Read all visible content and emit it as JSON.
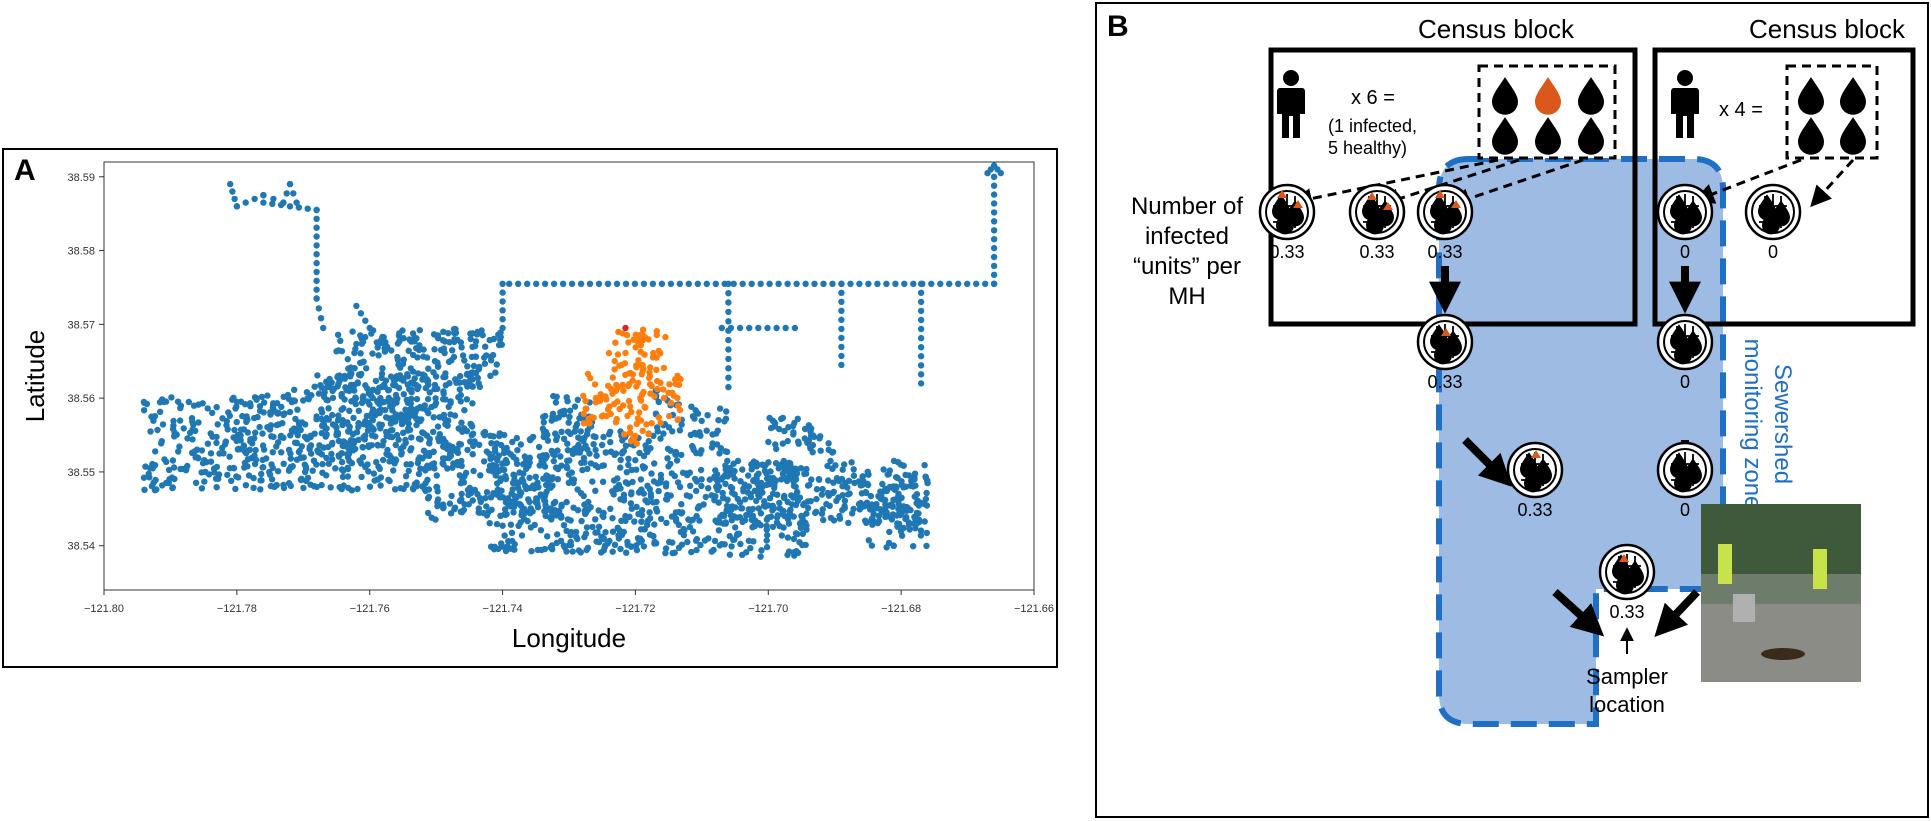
{
  "panel_a": {
    "letter": "A",
    "chart_data": {
      "type": "scatter",
      "xlabel": "Longitude",
      "ylabel": "Latitude",
      "xlim": [
        -121.8,
        -121.66
      ],
      "ylim": [
        38.534,
        38.592
      ],
      "xticks": [
        "−121.80",
        "−121.78",
        "−121.76",
        "−121.74",
        "−121.72",
        "−121.70",
        "−121.68",
        "−121.66"
      ],
      "xtick_values": [
        -121.8,
        -121.78,
        -121.76,
        -121.74,
        -121.72,
        -121.7,
        -121.68,
        -121.66
      ],
      "yticks": [
        "38.54",
        "38.55",
        "38.56",
        "38.57",
        "38.58",
        "38.59"
      ],
      "ytick_values": [
        38.54,
        38.55,
        38.56,
        38.57,
        38.58,
        38.59
      ],
      "grid": false,
      "series": [
        {
          "color": "#1f77b4",
          "regions": [
            [
              -121.794,
              -121.772,
              38.5475,
              38.5605
            ],
            [
              -121.772,
              -121.752,
              38.5475,
              38.562
            ],
            [
              -121.768,
              -121.744,
              38.551,
              38.5635
            ],
            [
              -121.765,
              -121.74,
              38.5615,
              38.5695
            ],
            [
              -121.752,
              -121.732,
              38.5435,
              38.5555
            ],
            [
              -121.742,
              -121.712,
              38.539,
              38.553
            ],
            [
              -121.734,
              -121.726,
              38.5535,
              38.5605
            ],
            [
              -121.712,
              -121.706,
              38.5525,
              38.559
            ],
            [
              -121.712,
              -121.694,
              38.5385,
              38.5505
            ],
            [
              -121.7,
              -121.69,
              38.5525,
              38.5575
            ],
            [
              -121.708,
              -121.676,
              38.543,
              38.5515
            ],
            [
              -121.686,
              -121.676,
              38.5395,
              38.5495
            ],
            [
              -121.733,
              -121.715,
              38.5525,
              38.5555
            ],
            [
              -121.717,
              -121.713,
              38.5555,
              38.5615
            ]
          ]
        },
        {
          "color": "#ff7f0e",
          "regions": [
            [
              -121.728,
              -121.713,
              38.5565,
              38.5635
            ],
            [
              -121.724,
              -121.715,
              38.5635,
              38.5695
            ],
            [
              -121.722,
              -121.718,
              38.5535,
              38.5565
            ]
          ]
        }
      ],
      "lines": [
        [
          [
            -121.781,
            38.589
          ],
          [
            -121.78,
            38.586
          ],
          [
            -121.776,
            38.5875
          ],
          [
            -121.773,
            38.5865
          ],
          [
            -121.772,
            38.589
          ],
          [
            -121.771,
            38.5865
          ]
        ],
        [
          [
            -121.776,
            38.5865
          ],
          [
            -121.768,
            38.5855
          ],
          [
            -121.768,
            38.5735
          ],
          [
            -121.767,
            38.5695
          ]
        ],
        [
          [
            -121.762,
            38.5725
          ],
          [
            -121.76,
            38.5695
          ]
        ],
        [
          [
            -121.739,
            38.5755
          ],
          [
            -121.666,
            38.5755
          ],
          [
            -121.666,
            38.59
          ]
        ],
        [
          [
            -121.667,
            38.5905
          ],
          [
            -121.666,
            38.5915
          ],
          [
            -121.665,
            38.5905
          ]
        ],
        [
          [
            -121.74,
            38.5755
          ],
          [
            -121.74,
            38.5695
          ]
        ],
        [
          [
            -121.706,
            38.5755
          ],
          [
            -121.706,
            38.5615
          ]
        ],
        [
          [
            -121.696,
            38.5695
          ],
          [
            -121.707,
            38.5695
          ]
        ],
        [
          [
            -121.689,
            38.5755
          ],
          [
            -121.689,
            38.5645
          ]
        ],
        [
          [
            -121.677,
            38.5755
          ],
          [
            -121.677,
            38.562
          ]
        ]
      ],
      "highlight": {
        "color": "#d62728",
        "points": [
          [
            -121.7215,
            38.5695
          ]
        ]
      }
    }
  },
  "panel_b": {
    "letter": "B",
    "census_block_label": "Census block",
    "left_block": {
      "multiplier": "x 6 =",
      "note_line1": "(1 infected,",
      "note_line2": "5 healthy)"
    },
    "right_block": {
      "multiplier": "x 4 ="
    },
    "manhole_values": {
      "top_left_1": "0.33",
      "top_left_2": "0.33",
      "top_left_3": "0.33",
      "top_right_1": "0",
      "top_right_2": "0",
      "left_mid": "0.33",
      "left_low": "0.33",
      "right_mid": "0",
      "right_low": "0",
      "sampler": "0.33"
    },
    "units_label": [
      "Number of",
      "infected",
      "“units” per",
      "MH"
    ],
    "zone_label": [
      "Sewershed",
      "monitoring zone"
    ],
    "sampler_label": [
      "Sampler",
      "location"
    ],
    "colors": {
      "zone_fill": "#9dbbe3",
      "zone_border": "#1f6fc4",
      "infected": "#d9581a",
      "zone_text": "#1f6fc4"
    }
  }
}
